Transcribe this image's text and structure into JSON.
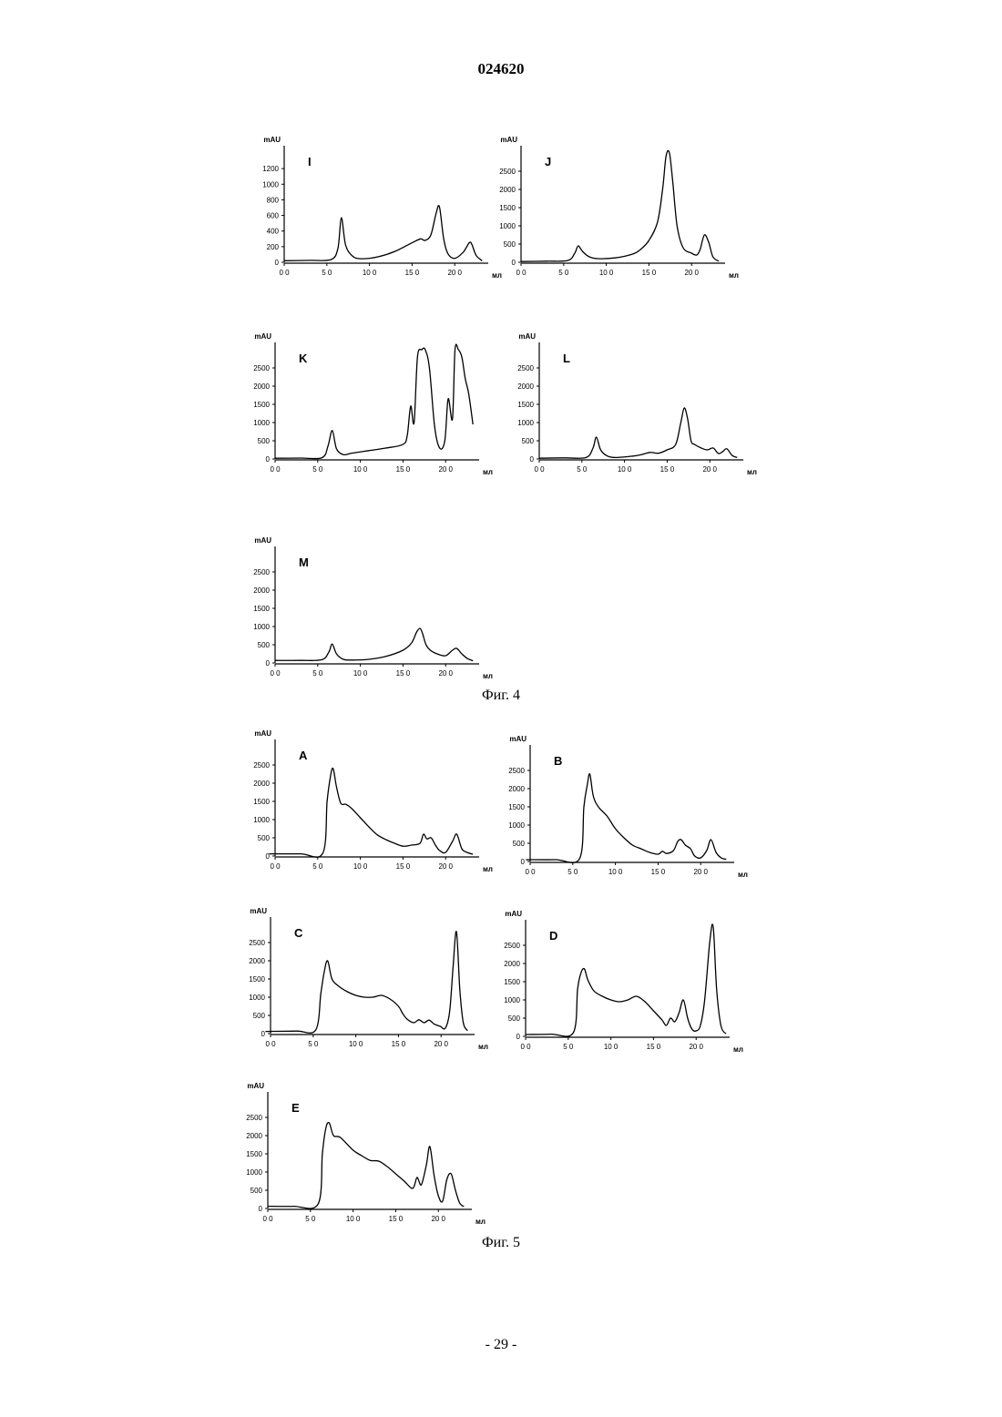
{
  "header": {
    "doc_number": "024620"
  },
  "figure4": {
    "caption": "Фиг. 4"
  },
  "figure5": {
    "caption": "Фиг. 5"
  },
  "footer": {
    "page_number": "- 29 -"
  },
  "chart_data": [
    {
      "type": "line",
      "panel": "I",
      "ylabel": "mAU",
      "xlabel": "мл",
      "xticks": [
        "0 0",
        "5 0",
        "10 0",
        "15 0",
        "20 0"
      ],
      "yticks": [
        "0",
        "200",
        "400",
        "600",
        "800",
        "1000",
        "1200"
      ],
      "xlim": [
        0,
        23.5
      ],
      "ylim": [
        0,
        1400
      ],
      "x": [
        0,
        3,
        5.5,
        6.3,
        6.7,
        7.2,
        8,
        9,
        11,
        13,
        15,
        16,
        16.5,
        17.2,
        17.8,
        18.2,
        18.7,
        19.2,
        20,
        21,
        21.7,
        22,
        22.5,
        23.2
      ],
      "y": [
        20,
        25,
        35,
        180,
        570,
        220,
        80,
        45,
        70,
        140,
        250,
        300,
        280,
        350,
        620,
        710,
        300,
        110,
        50,
        130,
        250,
        230,
        90,
        20
      ]
    },
    {
      "type": "line",
      "panel": "J",
      "ylabel": "mAU",
      "xlabel": "мл",
      "xticks": [
        "0 0",
        "5 0",
        "10 0",
        "15 0",
        "20 0"
      ],
      "yticks": [
        "0",
        "500",
        "1000",
        "1500",
        "2000",
        "2500"
      ],
      "xlim": [
        0,
        23.5
      ],
      "ylim": [
        0,
        3000
      ],
      "x": [
        0,
        3,
        5.5,
        6.3,
        6.7,
        7.2,
        8,
        9,
        11,
        13,
        14,
        15,
        16,
        16.6,
        17,
        17.4,
        17.8,
        18.3,
        19,
        20,
        20.6,
        21,
        21.5,
        22,
        22.5,
        23.2
      ],
      "y": [
        20,
        30,
        50,
        250,
        450,
        300,
        150,
        100,
        120,
        220,
        350,
        600,
        1100,
        2000,
        2900,
        3300,
        2200,
        1000,
        400,
        250,
        200,
        350,
        750,
        550,
        150,
        30
      ]
    },
    {
      "type": "line",
      "panel": "K",
      "ylabel": "mAU",
      "xlabel": "мл",
      "xticks": [
        "0 0",
        "5 0",
        "10 0",
        "15 0",
        "20 0"
      ],
      "yticks": [
        "0",
        "500",
        "1000",
        "1500",
        "2000",
        "2500"
      ],
      "xlim": [
        0,
        23.5
      ],
      "ylim": [
        0,
        3000
      ],
      "x": [
        0,
        3,
        5.5,
        6.2,
        6.7,
        7.2,
        8,
        9,
        11,
        13,
        15,
        15.5,
        15.9,
        16.3,
        16.7,
        17.2,
        17.6,
        18.1,
        18.7,
        19.3,
        19.9,
        20.3,
        20.8,
        21.1,
        21.5,
        21.9,
        22.3,
        22.7,
        23.2
      ],
      "y": [
        20,
        25,
        35,
        350,
        780,
        280,
        120,
        160,
        230,
        300,
        400,
        650,
        1450,
        1000,
        2800,
        3200,
        3200,
        2500,
        900,
        300,
        500,
        1650,
        1100,
        3200,
        3200,
        2800,
        2200,
        1800,
        950
      ]
    },
    {
      "type": "line",
      "panel": "L",
      "ylabel": "mAU",
      "xlabel": "мл",
      "xticks": [
        "0 0",
        "5 0",
        "10 0",
        "15 0",
        "20 0"
      ],
      "yticks": [
        "0",
        "500",
        "1000",
        "1500",
        "2000",
        "2500"
      ],
      "xlim": [
        0,
        23.5
      ],
      "ylim": [
        0,
        3000
      ],
      "x": [
        0,
        3,
        5.5,
        6.3,
        6.7,
        7.2,
        8,
        9,
        11,
        12,
        13,
        14,
        15,
        16,
        16.6,
        17,
        17.4,
        17.8,
        18.2,
        19,
        19.7,
        20.4,
        21,
        21.5,
        22,
        22.6,
        23.2
      ],
      "y": [
        20,
        30,
        40,
        300,
        600,
        250,
        80,
        40,
        80,
        120,
        180,
        160,
        250,
        400,
        1000,
        1400,
        1100,
        500,
        400,
        300,
        250,
        300,
        150,
        200,
        280,
        100,
        40
      ]
    },
    {
      "type": "line",
      "panel": "M",
      "ylabel": "mAU",
      "xlabel": "мл",
      "xticks": [
        "0 0",
        "5 0",
        "10 0",
        "15 0",
        "20 0"
      ],
      "yticks": [
        "0",
        "500",
        "1000",
        "1500",
        "2000",
        "2500"
      ],
      "xlim": [
        0,
        23.5
      ],
      "ylim": [
        0,
        3000
      ],
      "x": [
        0,
        3,
        5.5,
        6.3,
        6.7,
        7.2,
        8,
        9,
        11,
        13,
        15,
        16,
        16.6,
        17,
        17.3,
        17.7,
        18.2,
        19,
        20,
        20.8,
        21.3,
        21.9,
        22.5,
        23.2
      ],
      "y": [
        70,
        70,
        90,
        300,
        520,
        250,
        100,
        80,
        100,
        180,
        350,
        550,
        850,
        950,
        800,
        500,
        350,
        250,
        200,
        350,
        400,
        250,
        130,
        60
      ]
    },
    {
      "type": "line",
      "panel": "A",
      "ylabel": "mAU",
      "xlabel": "мл",
      "xticks": [
        "0 0",
        "5 0",
        "10 0",
        "15 0",
        "20 0"
      ],
      "yticks": [
        "0",
        "500",
        "1000",
        "1500",
        "2000",
        "2500"
      ],
      "xlim": [
        0,
        23.5
      ],
      "ylim": [
        0,
        3000
      ],
      "x": [
        -0.7,
        3,
        5.6,
        6.1,
        6.5,
        6.8,
        7.2,
        7.7,
        8.3,
        9,
        10,
        11,
        12,
        13,
        14,
        15,
        16,
        17,
        17.4,
        17.8,
        18.3,
        18.8,
        19.3,
        20,
        20.8,
        21.3,
        21.9,
        22.5,
        23.2
      ],
      "y": [
        60,
        60,
        80,
        1500,
        2200,
        2400,
        1900,
        1450,
        1420,
        1300,
        1050,
        800,
        580,
        450,
        350,
        270,
        300,
        350,
        600,
        470,
        500,
        300,
        150,
        100,
        400,
        600,
        200,
        100,
        50
      ]
    },
    {
      "type": "line",
      "panel": "B",
      "ylabel": "mAU",
      "xlabel": "мл",
      "xticks": [
        "0 0",
        "5 0",
        "10 0",
        "15 0",
        "20 0"
      ],
      "yticks": [
        "0",
        "500",
        "1000",
        "1500",
        "2000",
        "2500"
      ],
      "xlim": [
        0,
        23.5
      ],
      "ylim": [
        0,
        3000
      ],
      "x": [
        -0.5,
        3,
        5.8,
        6.3,
        6.7,
        7,
        7.4,
        8,
        9,
        10,
        11,
        12,
        13,
        14,
        15,
        15.5,
        16,
        16.8,
        17.3,
        17.7,
        18.2,
        18.8,
        19.3,
        20,
        20.7,
        21.2,
        21.8,
        22.4,
        23
      ],
      "y": [
        50,
        50,
        80,
        1500,
        2100,
        2400,
        1800,
        1500,
        1250,
        900,
        650,
        450,
        350,
        250,
        200,
        280,
        220,
        300,
        550,
        600,
        450,
        350,
        150,
        100,
        300,
        600,
        250,
        100,
        60
      ]
    },
    {
      "type": "line",
      "panel": "C",
      "ylabel": "mAU",
      "xlabel": "мл",
      "xticks": [
        "0 0",
        "5 0",
        "10 0",
        "15 0",
        "20 0"
      ],
      "yticks": [
        "0",
        "500",
        "1000",
        "1500",
        "2000",
        "2500"
      ],
      "xlim": [
        0,
        23.5
      ],
      "ylim": [
        0,
        3000
      ],
      "x": [
        -0.6,
        3,
        5.3,
        5.9,
        6.3,
        6.7,
        7.2,
        8,
        9,
        10,
        11,
        12,
        13,
        14,
        15,
        15.5,
        16,
        16.8,
        17.4,
        18,
        18.6,
        19.2,
        19.9,
        20.5,
        21,
        21.4,
        21.8,
        22.2,
        22.6,
        23.1
      ],
      "y": [
        60,
        70,
        100,
        1100,
        1700,
        2000,
        1500,
        1300,
        1150,
        1050,
        1000,
        1000,
        1050,
        950,
        750,
        550,
        400,
        300,
        380,
        300,
        370,
        260,
        200,
        150,
        600,
        1800,
        2800,
        1200,
        300,
        80
      ]
    },
    {
      "type": "line",
      "panel": "D",
      "ylabel": "mAU",
      "xlabel": "мл",
      "xticks": [
        "0 0",
        "5 0",
        "10 0",
        "15 0",
        "20 0"
      ],
      "yticks": [
        "0",
        "500",
        "1000",
        "1500",
        "2000",
        "2500"
      ],
      "xlim": [
        0,
        23.5
      ],
      "ylim": [
        0,
        3000
      ],
      "x": [
        0,
        3,
        5.6,
        6.1,
        6.5,
        6.9,
        7.3,
        8,
        9,
        10,
        11,
        12,
        13,
        14,
        15,
        16,
        16.5,
        17,
        17.5,
        18,
        18.5,
        19,
        19.5,
        20,
        20.5,
        21,
        21.6,
        22,
        22.4,
        22.9,
        23.5
      ],
      "y": [
        50,
        60,
        100,
        1300,
        1750,
        1850,
        1550,
        1250,
        1100,
        1000,
        950,
        1000,
        1100,
        950,
        700,
        450,
        300,
        500,
        400,
        650,
        1000,
        500,
        200,
        150,
        300,
        1000,
        2600,
        3150,
        1300,
        300,
        70
      ]
    },
    {
      "type": "line",
      "panel": "E",
      "ylabel": "mAU",
      "xlabel": "мл",
      "xticks": [
        "0 0",
        "5 0",
        "10 0",
        "15 0",
        "20 0"
      ],
      "yticks": [
        "0",
        "500",
        "1000",
        "1500",
        "2000",
        "2500"
      ],
      "xlim": [
        0,
        23.5
      ],
      "ylim": [
        0,
        3000
      ],
      "x": [
        0,
        3,
        5.9,
        6.4,
        6.8,
        7.2,
        7.7,
        8.5,
        10,
        11,
        12,
        13,
        14,
        15,
        16,
        17,
        17.5,
        18,
        18.6,
        19,
        19.5,
        20,
        20.5,
        21,
        21.5,
        22,
        22.5,
        23
      ],
      "y": [
        60,
        60,
        120,
        1500,
        2200,
        2350,
        2000,
        1950,
        1600,
        1450,
        1320,
        1300,
        1150,
        950,
        750,
        550,
        850,
        650,
        1200,
        1700,
        900,
        350,
        200,
        800,
        950,
        500,
        150,
        50
      ]
    }
  ]
}
